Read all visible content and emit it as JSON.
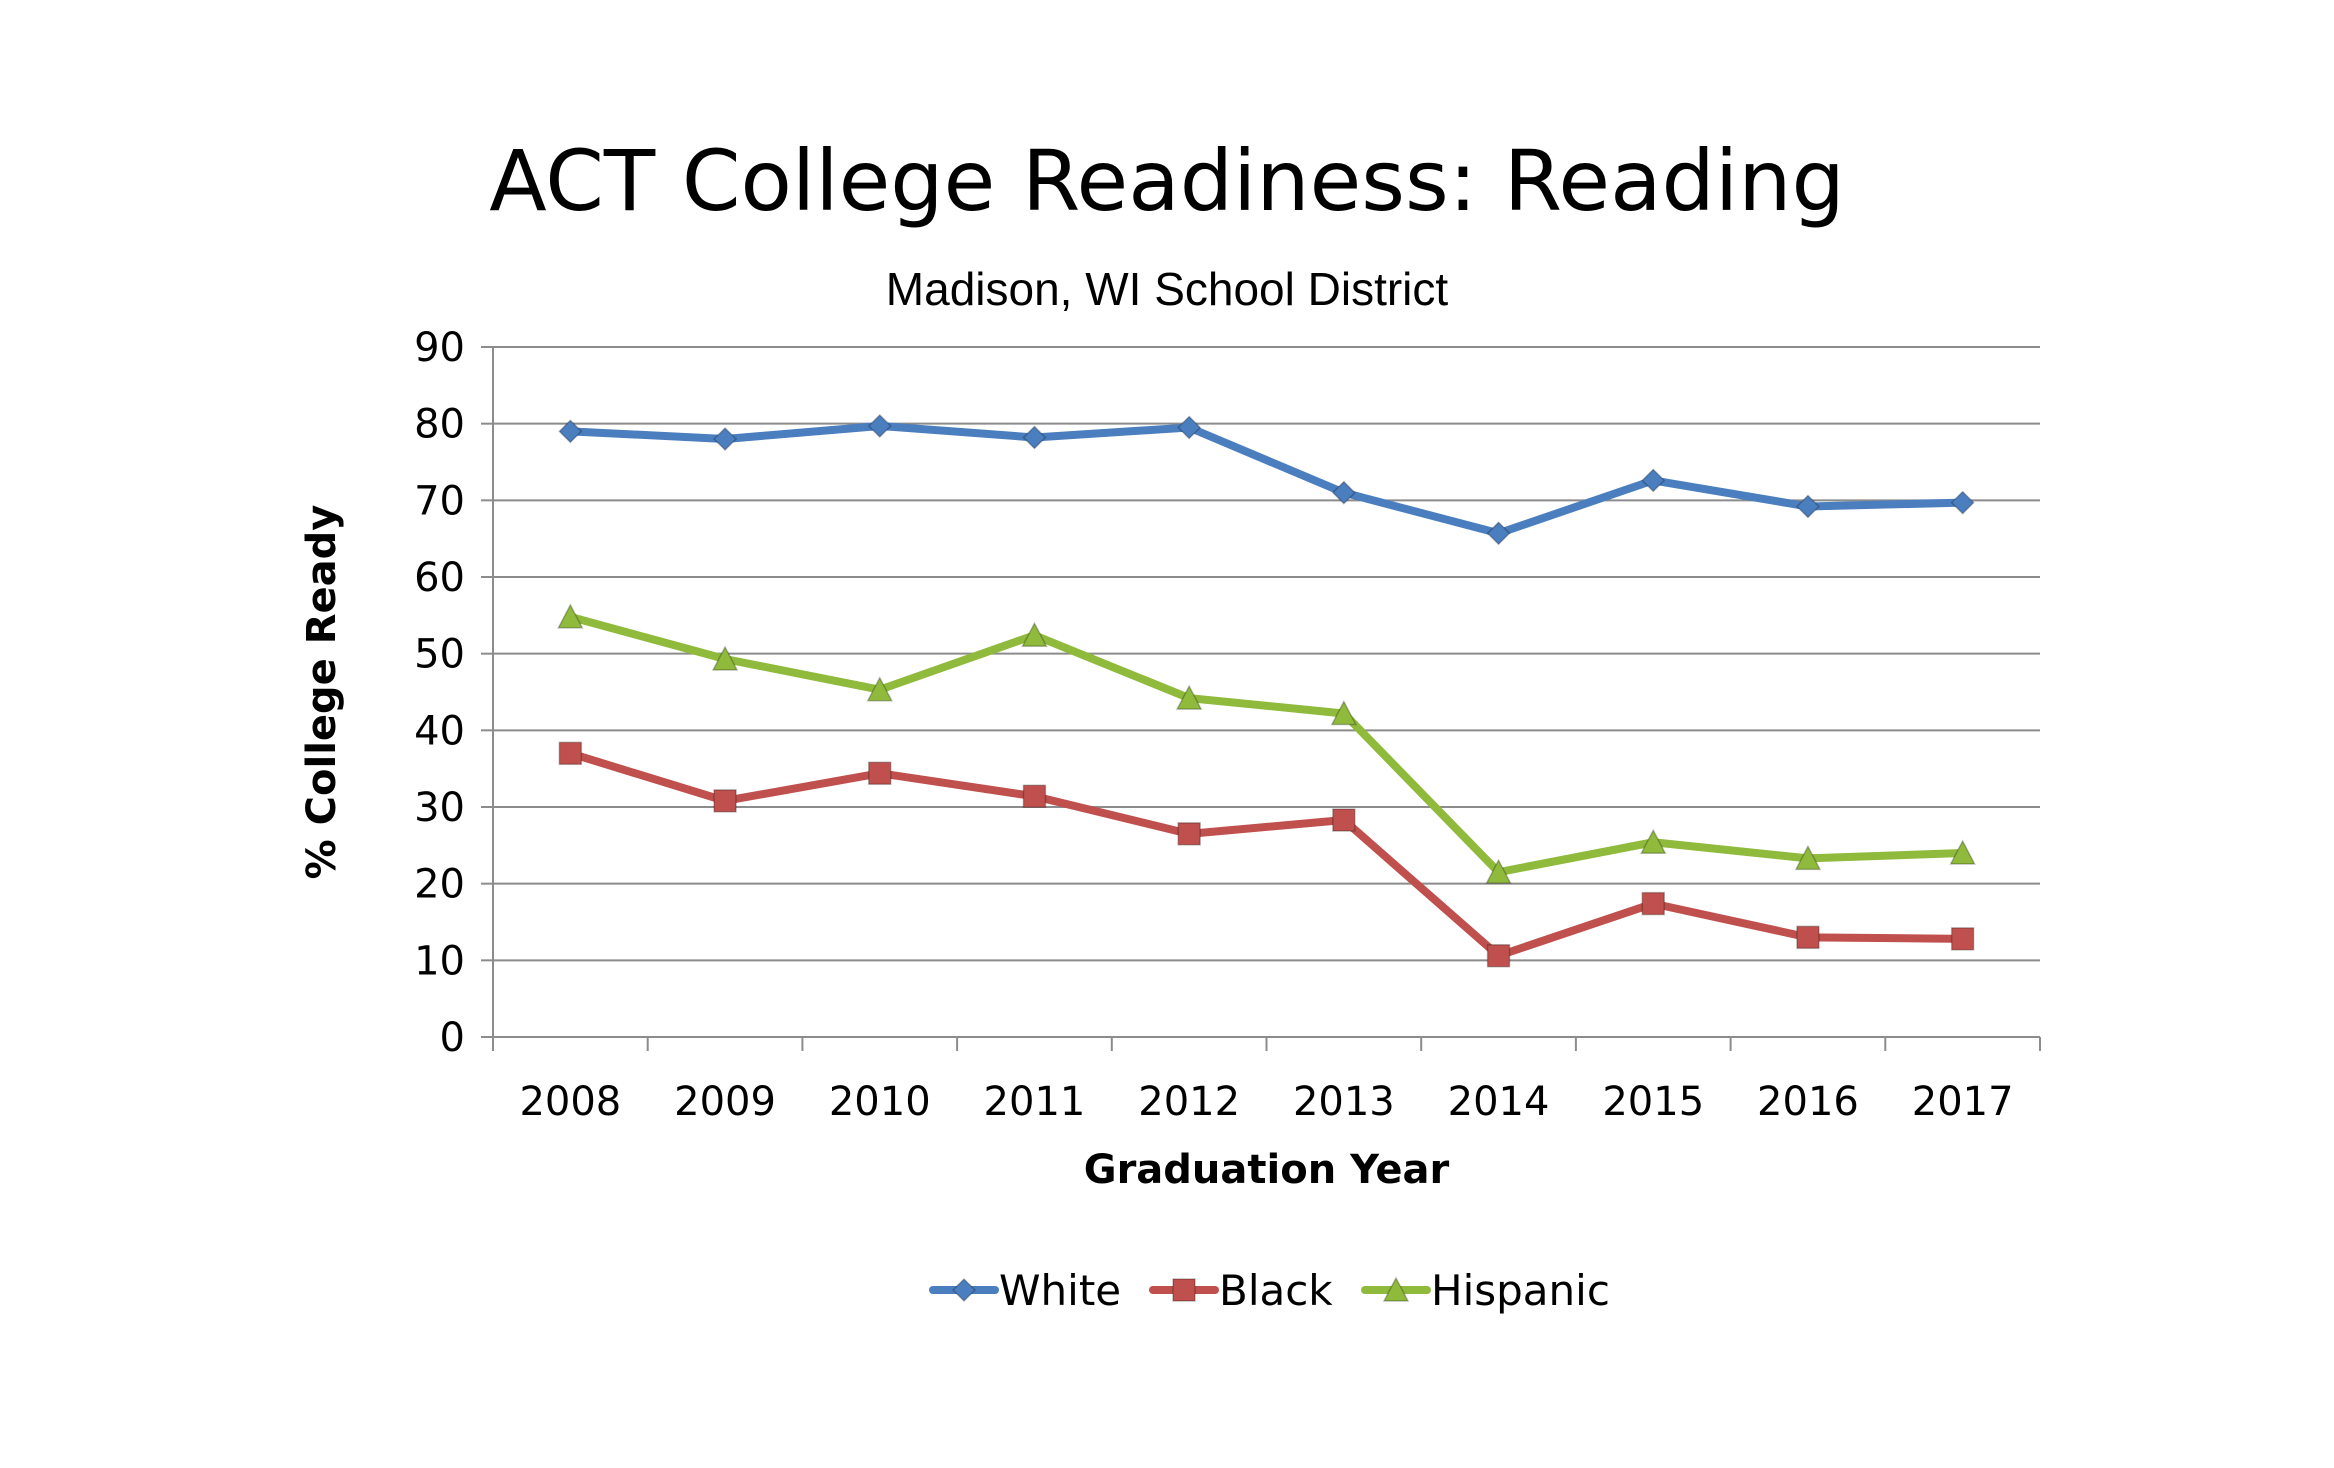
{
  "chart_data": {
    "type": "line",
    "title": "ACT College Readiness: Reading",
    "subtitle": "Madison, WI School District",
    "xlabel": "Graduation Year",
    "ylabel": "% College Ready",
    "categories": [
      "2008",
      "2009",
      "2010",
      "2011",
      "2012",
      "2013",
      "2014",
      "2015",
      "2016",
      "2017"
    ],
    "ylim": [
      0,
      90
    ],
    "yticks": [
      0,
      10,
      20,
      30,
      40,
      50,
      60,
      70,
      80,
      90
    ],
    "grid": true,
    "legend": "bottom",
    "series": [
      {
        "name": "White",
        "color": "#4a7ebf",
        "marker": "diamond",
        "values": [
          79,
          78,
          79.7,
          78.2,
          79.5,
          71,
          65.7,
          72.6,
          69.2,
          69.7
        ]
      },
      {
        "name": "Black",
        "color": "#c0504d",
        "marker": "square",
        "values": [
          37,
          30.8,
          34.4,
          31.4,
          26.5,
          28.3,
          10.6,
          17.4,
          13,
          12.8
        ]
      },
      {
        "name": "Hispanic",
        "color": "#8fba3c",
        "marker": "triangle",
        "values": [
          54.8,
          49.3,
          45.3,
          52.4,
          44.2,
          42.2,
          21.5,
          25.4,
          23.3,
          24
        ]
      }
    ]
  }
}
